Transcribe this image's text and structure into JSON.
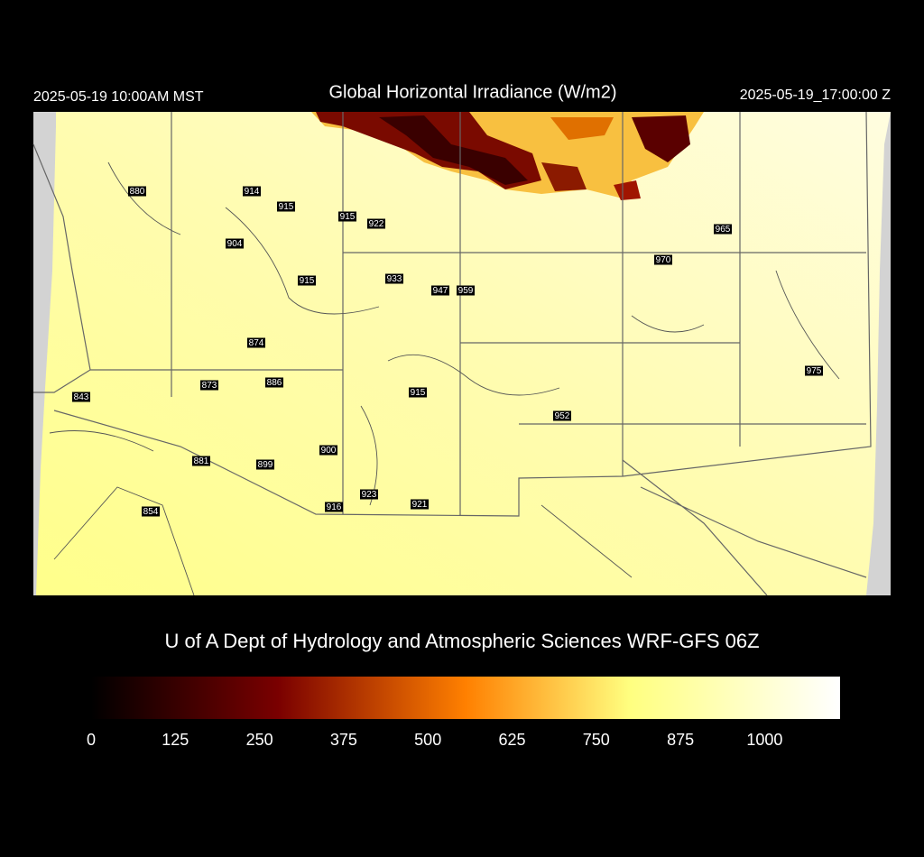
{
  "header": {
    "valid_local": "2025-05-19 10:00AM MST",
    "title": "Global Horizontal Irradiance (W/m2)",
    "valid_utc": "2025-05-19_17:00:00 Z"
  },
  "stations": [
    880,
    914,
    915,
    915,
    922,
    904,
    970,
    965,
    933,
    915,
    947,
    959,
    874,
    975,
    873,
    886,
    843,
    915,
    952,
    900,
    881,
    899,
    923,
    916,
    921,
    854
  ],
  "credit": "U of A Dept of Hydrology and Atmospheric Sciences WRF-GFS 06Z",
  "colorbar": {
    "lim": [
      0,
      1112
    ],
    "ticks": [
      0,
      125,
      250,
      375,
      500,
      625,
      750,
      875,
      1000
    ]
  }
}
